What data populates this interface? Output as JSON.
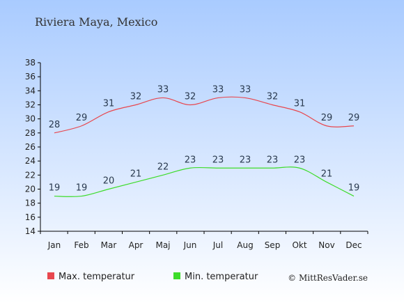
{
  "chart_data": {
    "type": "line",
    "title": "Riviera Maya, Mexico",
    "categories": [
      "Jan",
      "Feb",
      "Mar",
      "Apr",
      "Maj",
      "Jun",
      "Jul",
      "Aug",
      "Sep",
      "Okt",
      "Nov",
      "Dec"
    ],
    "series": [
      {
        "name": "Max. temperatur",
        "color": "#e8474e",
        "values": [
          28,
          29,
          31,
          32,
          33,
          32,
          33,
          33,
          32,
          31,
          29,
          29
        ]
      },
      {
        "name": "Min. temperatur",
        "color": "#3ddc2a",
        "values": [
          19,
          19,
          20,
          21,
          22,
          23,
          23,
          23,
          23,
          23,
          21,
          19
        ]
      }
    ],
    "ylim": [
      14,
      38
    ],
    "yticks": [
      14,
      16,
      18,
      20,
      22,
      24,
      26,
      28,
      30,
      32,
      34,
      36,
      38
    ],
    "grid": false,
    "legend_position": "bottom",
    "credit": "© MittResVader.se",
    "background": {
      "top": "#a9cbff",
      "bottom": "#ffffff"
    }
  }
}
